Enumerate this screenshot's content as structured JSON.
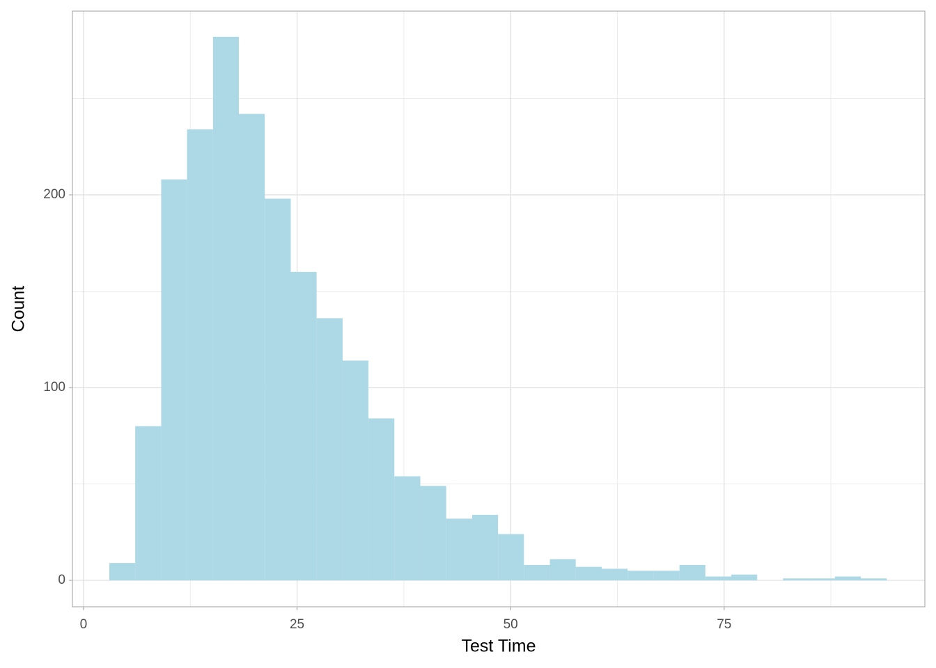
{
  "chart_data": {
    "type": "histogram",
    "x_label": "Test Time",
    "y_label": "Count",
    "color": "#add8e6",
    "bins": [
      3.02,
      6.05,
      9.09,
      12.12,
      15.16,
      18.19,
      21.22,
      24.26,
      27.29,
      30.33,
      33.36,
      36.39,
      39.43,
      42.46,
      45.5,
      48.53,
      51.56,
      54.6,
      57.63,
      60.67,
      63.7,
      66.73,
      69.77,
      72.8,
      75.84,
      78.87,
      81.9,
      84.94,
      87.97,
      91.01,
      94.04
    ],
    "counts": [
      9,
      80,
      208,
      234,
      282,
      242,
      198,
      160,
      136,
      114,
      84,
      54,
      49,
      32,
      34,
      24,
      8,
      11,
      7,
      6,
      5,
      5,
      8,
      2,
      3,
      0,
      1,
      1,
      2,
      1
    ],
    "xlim": [
      -1.3,
      98.5
    ],
    "xticks": [
      0,
      25,
      50,
      75
    ],
    "xminor": [
      12.5,
      37.5,
      62.5,
      87.5
    ],
    "ylim": [
      -13.7,
      295.3
    ],
    "yticks": [
      0,
      100,
      200
    ],
    "yminor": [
      50,
      150,
      250
    ],
    "grid": true
  }
}
